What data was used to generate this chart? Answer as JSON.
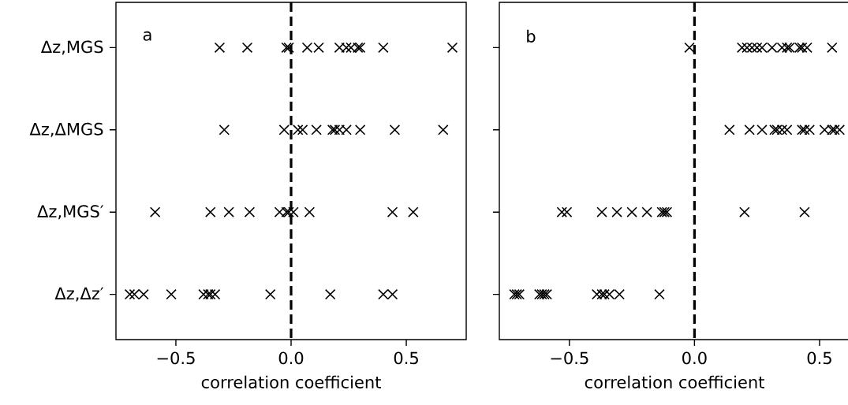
{
  "chart_data": [
    {
      "type": "scatter",
      "orientation": "horizontal",
      "xlabel": "correlation coefficient",
      "annotations": [
        "a"
      ],
      "categories": [
        "Δz,MGS",
        "Δz,ΔMGS",
        "Δz,MGS′",
        "Δz,Δz′"
      ],
      "xlim": [
        -0.76,
        0.76
      ],
      "xticks": [
        {
          "value": -0.5,
          "label": "−0.5"
        },
        {
          "value": 0,
          "label": "0.0"
        },
        {
          "value": 0.5,
          "label": "0.5"
        }
      ],
      "marker": "cross",
      "ref_lines": [
        {
          "axis": "x",
          "value": 0,
          "color": "#000000",
          "line_style": "dashed"
        }
      ],
      "series": [
        {
          "color": "#000000",
          "values": [
            -0.31,
            -0.19,
            -0.02,
            -0.01,
            0.07,
            0.12,
            0.21,
            0.24,
            0.26,
            0.29,
            0.3,
            0.4,
            0.7
          ],
          "x": [
            "Δz,MGS",
            "Δz,MGS",
            "Δz,MGS",
            "Δz,MGS",
            "Δz,MGS",
            "Δz,MGS",
            "Δz,MGS",
            "Δz,MGS",
            "Δz,MGS",
            "Δz,MGS",
            "Δz,MGS",
            "Δz,MGS",
            "Δz,MGS"
          ]
        },
        {
          "color": "#000000",
          "values": [
            -0.29,
            -0.03,
            0.03,
            0.05,
            0.11,
            0.18,
            0.19,
            0.21,
            0.24,
            0.3,
            0.45,
            0.66
          ],
          "x": [
            "Δz,ΔMGS",
            "Δz,ΔMGS",
            "Δz,ΔMGS",
            "Δz,ΔMGS",
            "Δz,ΔMGS",
            "Δz,ΔMGS",
            "Δz,ΔMGS",
            "Δz,ΔMGS",
            "Δz,ΔMGS",
            "Δz,ΔMGS",
            "Δz,ΔMGS",
            "Δz,ΔMGS"
          ]
        },
        {
          "color": "#000000",
          "values": [
            -0.59,
            -0.35,
            -0.27,
            -0.18,
            -0.05,
            -0.02,
            -0.01,
            0.01,
            0.08,
            0.44,
            0.53
          ],
          "x": [
            "Δz,MGS′",
            "Δz,MGS′",
            "Δz,MGS′",
            "Δz,MGS′",
            "Δz,MGS′",
            "Δz,MGS′",
            "Δz,MGS′",
            "Δz,MGS′",
            "Δz,MGS′",
            "Δz,MGS′",
            "Δz,MGS′"
          ]
        },
        {
          "color": "#000000",
          "values": [
            -0.7,
            -0.68,
            -0.64,
            -0.52,
            -0.38,
            -0.36,
            -0.35,
            -0.33,
            -0.09,
            0.17,
            0.4,
            0.44
          ],
          "x": [
            "Δz,Δz′",
            "Δz,Δz′",
            "Δz,Δz′",
            "Δz,Δz′",
            "Δz,Δz′",
            "Δz,Δz′",
            "Δz,Δz′",
            "Δz,Δz′",
            "Δz,Δz′",
            "Δz,Δz′",
            "Δz,Δz′",
            "Δz,Δz′"
          ]
        }
      ]
    },
    {
      "type": "scatter",
      "orientation": "horizontal",
      "xlabel": "correlation coefficient",
      "annotations": [
        "b"
      ],
      "categories": [
        "Δz,MGS",
        "Δz,ΔMGS",
        "Δz,MGS′",
        "Δz,Δz′"
      ],
      "tick_labels": "x",
      "xlim": [
        -0.78,
        0.62
      ],
      "xticks": [
        {
          "value": -0.5,
          "label": "−0.5"
        },
        {
          "value": 0,
          "label": "0.0"
        },
        {
          "value": 0.5,
          "label": "0.5"
        }
      ],
      "marker": "cross",
      "ref_lines": [
        {
          "axis": "x",
          "value": 0,
          "color": "#000000",
          "line_style": "dashed"
        }
      ],
      "series": [
        {
          "color": "#000000",
          "values": [
            -0.02,
            0.19,
            0.21,
            0.23,
            0.25,
            0.27,
            0.31,
            0.35,
            0.37,
            0.38,
            0.42,
            0.43,
            0.45,
            0.55
          ],
          "x": [
            "Δz,MGS",
            "Δz,MGS",
            "Δz,MGS",
            "Δz,MGS",
            "Δz,MGS",
            "Δz,MGS",
            "Δz,MGS",
            "Δz,MGS",
            "Δz,MGS",
            "Δz,MGS",
            "Δz,MGS",
            "Δz,MGS",
            "Δz,MGS",
            "Δz,MGS"
          ]
        },
        {
          "color": "#000000",
          "values": [
            0.14,
            0.22,
            0.27,
            0.32,
            0.33,
            0.35,
            0.37,
            0.43,
            0.44,
            0.46,
            0.52,
            0.55,
            0.56,
            0.58
          ],
          "x": [
            "Δz,ΔMGS",
            "Δz,ΔMGS",
            "Δz,ΔMGS",
            "Δz,ΔMGS",
            "Δz,ΔMGS",
            "Δz,ΔMGS",
            "Δz,ΔMGS",
            "Δz,ΔMGS",
            "Δz,ΔMGS",
            "Δz,ΔMGS",
            "Δz,ΔMGS",
            "Δz,ΔMGS",
            "Δz,ΔMGS",
            "Δz,ΔMGS"
          ]
        },
        {
          "color": "#000000",
          "values": [
            -0.53,
            -0.51,
            -0.37,
            -0.31,
            -0.25,
            -0.19,
            -0.13,
            -0.12,
            -0.11,
            0.2,
            0.44
          ],
          "x": [
            "Δz,MGS′",
            "Δz,MGS′",
            "Δz,MGS′",
            "Δz,MGS′",
            "Δz,MGS′",
            "Δz,MGS′",
            "Δz,MGS′",
            "Δz,MGS′",
            "Δz,MGS′",
            "Δz,MGS′",
            "Δz,MGS′"
          ]
        },
        {
          "color": "#000000",
          "values": [
            -0.72,
            -0.71,
            -0.7,
            -0.62,
            -0.61,
            -0.6,
            -0.59,
            -0.39,
            -0.37,
            -0.36,
            -0.34,
            -0.3,
            -0.14
          ],
          "x": [
            "Δz,Δz′",
            "Δz,Δz′",
            "Δz,Δz′",
            "Δz,Δz′",
            "Δz,Δz′",
            "Δz,Δz′",
            "Δz,Δz′",
            "Δz,Δz′",
            "Δz,Δz′",
            "Δz,Δz′",
            "Δz,Δz′",
            "Δz,Δz′",
            "Δz,Δz′"
          ]
        }
      ]
    }
  ]
}
